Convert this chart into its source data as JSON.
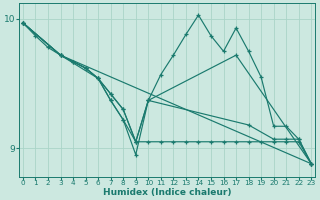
{
  "xlabel": "Humidex (Indice chaleur)",
  "bg_color": "#cce8e0",
  "line_color": "#1a7a6e",
  "grid_color": "#aad4c8",
  "xlim": [
    -0.3,
    23.3
  ],
  "ylim": [
    8.78,
    10.12
  ],
  "yticks": [
    9,
    10
  ],
  "xticks": [
    0,
    1,
    2,
    3,
    4,
    5,
    6,
    7,
    8,
    9,
    10,
    11,
    12,
    13,
    14,
    15,
    16,
    17,
    18,
    19,
    20,
    21,
    22,
    23
  ],
  "lines": [
    {
      "x": [
        0,
        1,
        2,
        3,
        4,
        5,
        6,
        7,
        8,
        9,
        10,
        11,
        12,
        13,
        14,
        15,
        16,
        17,
        18,
        19,
        20,
        21,
        22,
        23
      ],
      "y": [
        9.97,
        9.87,
        9.78,
        9.72,
        9.67,
        9.62,
        9.54,
        9.42,
        9.3,
        9.05,
        9.37,
        9.57,
        9.72,
        9.88,
        10.03,
        9.87,
        9.75,
        9.93,
        9.75,
        9.55,
        9.17,
        9.17,
        9.07,
        8.88
      ]
    },
    {
      "x": [
        0,
        3,
        23
      ],
      "y": [
        9.97,
        9.72,
        8.88
      ]
    },
    {
      "x": [
        0,
        3,
        4,
        5,
        6,
        7,
        8,
        9,
        10,
        11,
        12,
        13,
        14,
        15,
        16,
        17,
        18,
        19,
        20,
        21,
        22,
        23
      ],
      "y": [
        9.97,
        9.72,
        9.67,
        9.62,
        9.54,
        9.42,
        9.3,
        9.05,
        9.05,
        9.05,
        9.05,
        9.05,
        9.05,
        9.05,
        9.05,
        9.05,
        9.05,
        9.05,
        9.05,
        9.05,
        9.05,
        8.88
      ]
    },
    {
      "x": [
        0,
        3,
        5,
        6,
        7,
        8,
        9,
        10,
        17,
        23
      ],
      "y": [
        9.97,
        9.72,
        9.62,
        9.54,
        9.37,
        9.22,
        8.95,
        9.37,
        9.72,
        8.88
      ]
    },
    {
      "x": [
        0,
        3,
        6,
        7,
        8,
        9,
        10,
        18,
        20,
        21,
        22,
        23
      ],
      "y": [
        9.97,
        9.72,
        9.54,
        9.37,
        9.22,
        9.05,
        9.37,
        9.18,
        9.07,
        9.07,
        9.07,
        8.88
      ]
    }
  ]
}
